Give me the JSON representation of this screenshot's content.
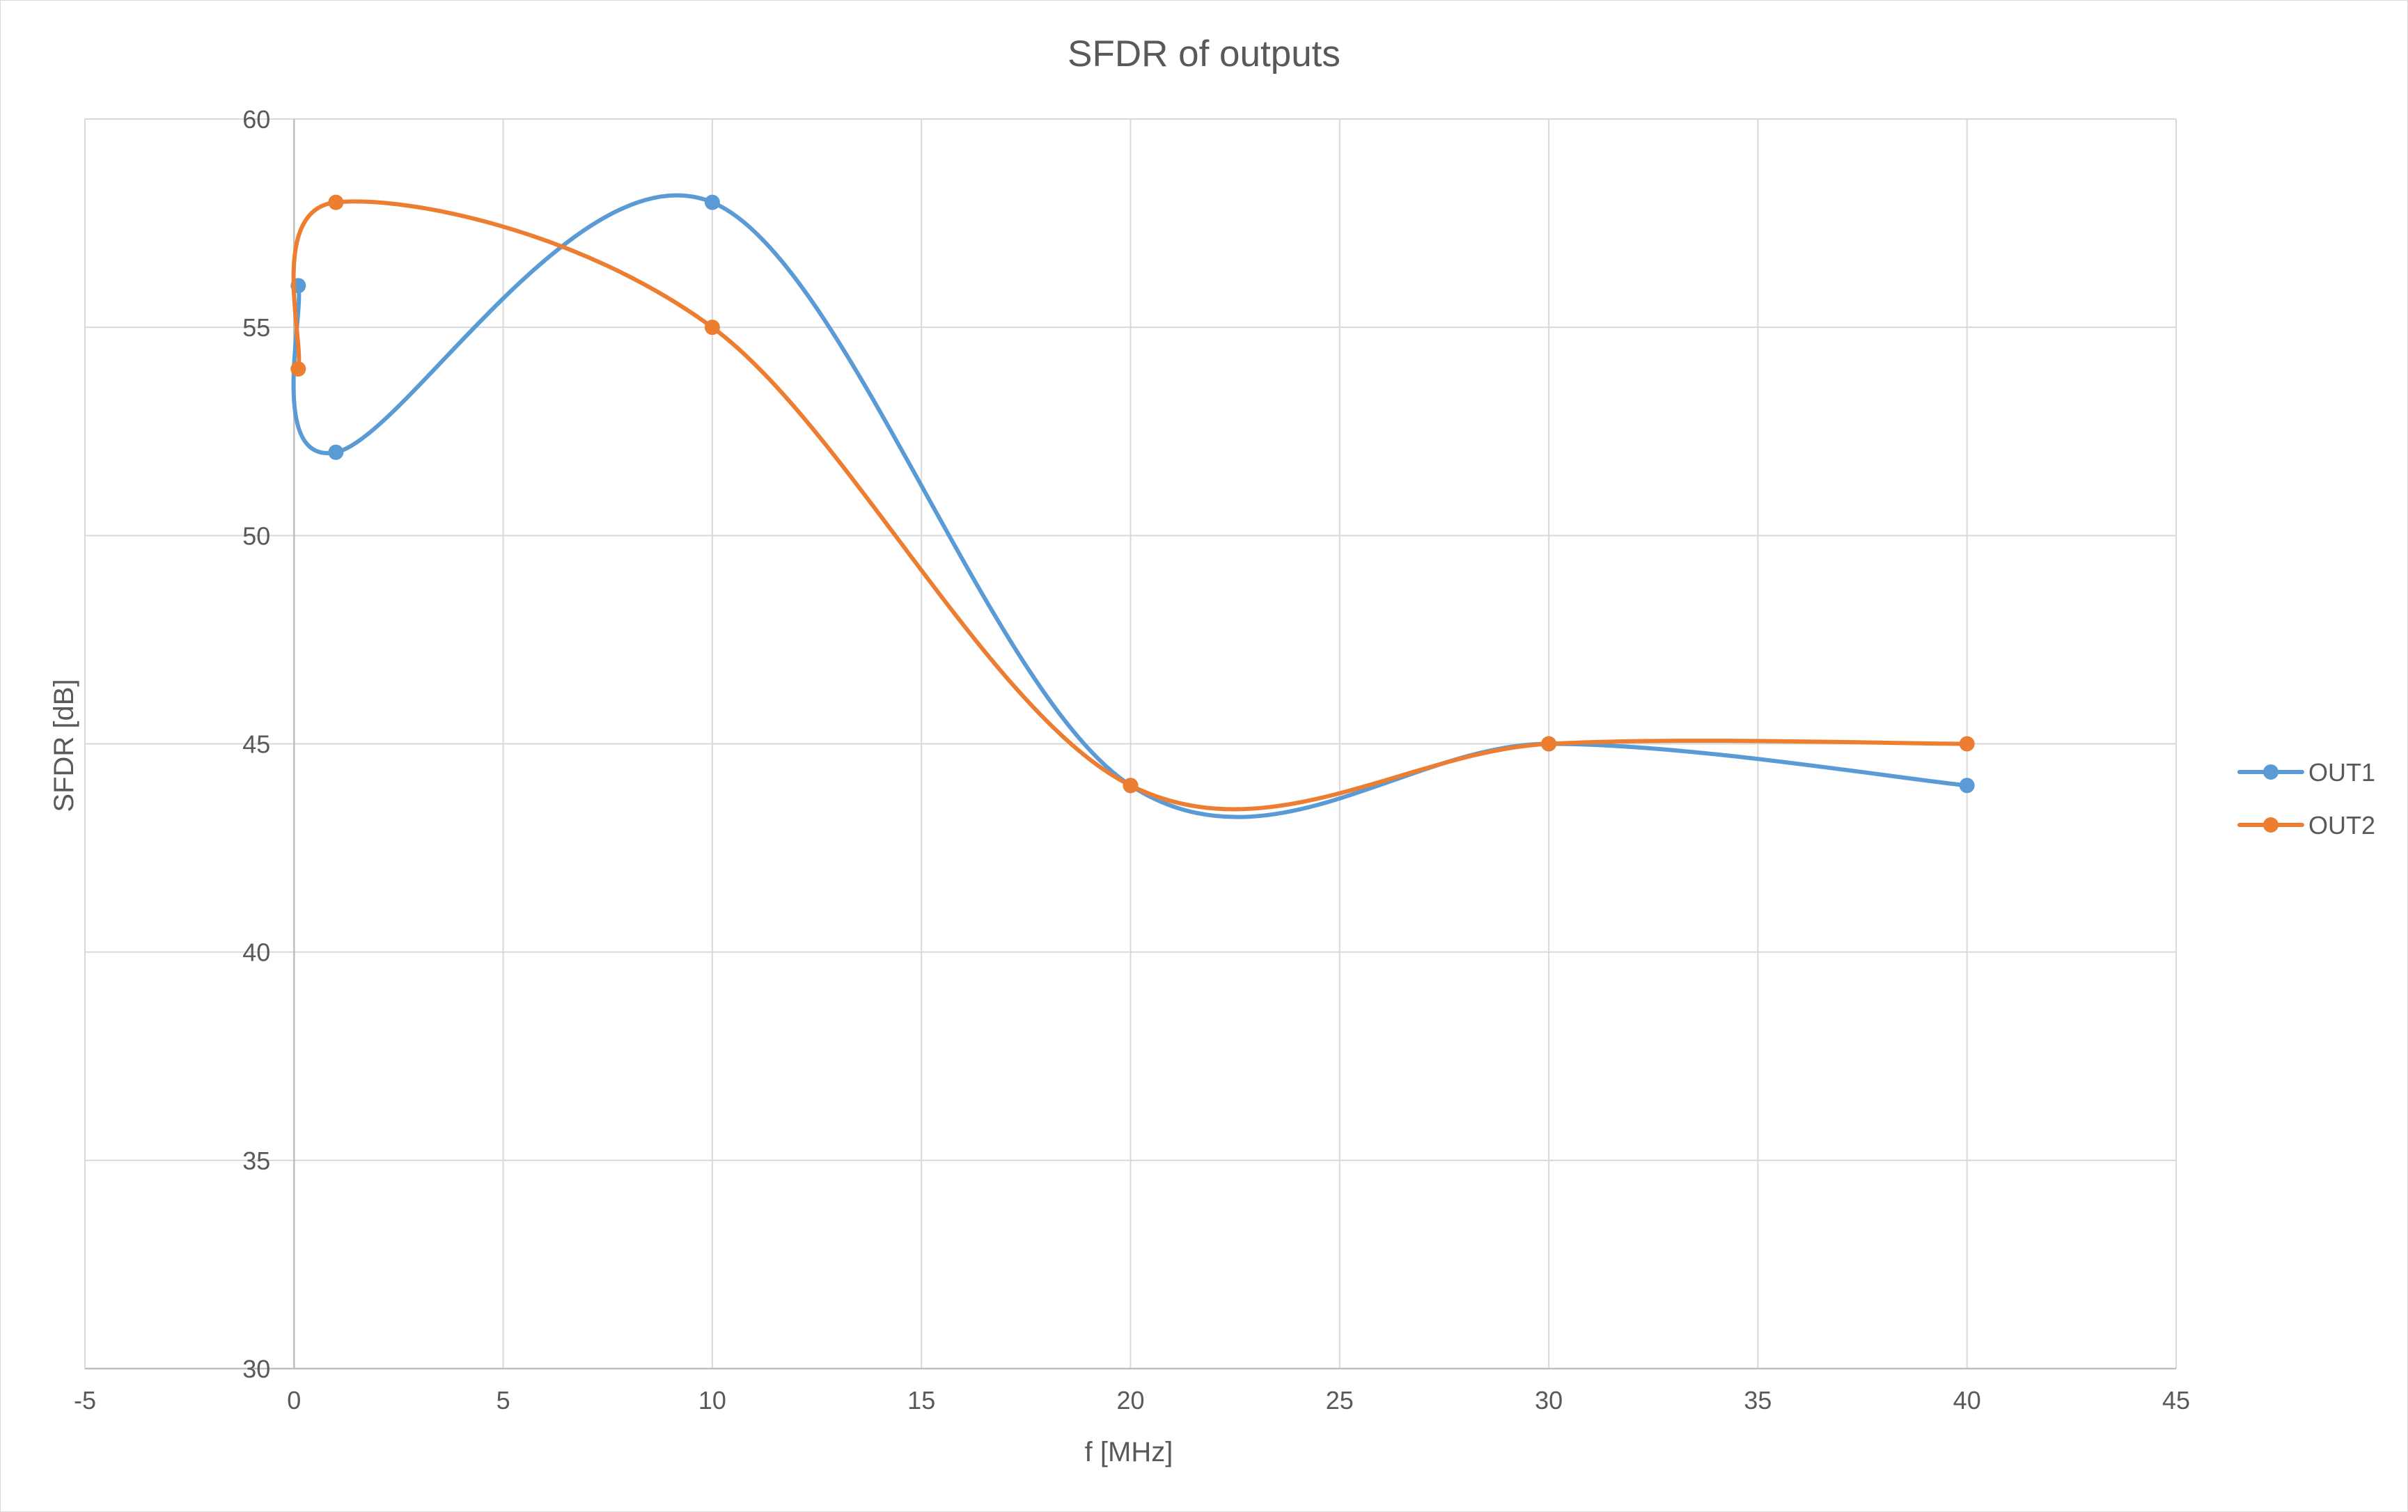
{
  "chart_data": {
    "type": "scatter",
    "title": "SFDR of outputs",
    "xlabel": "f [MHz]",
    "ylabel": "SFDR [dB]",
    "xlim": [
      -5,
      45
    ],
    "ylim": [
      30,
      60
    ],
    "x_ticks": [
      -5,
      0,
      5,
      10,
      15,
      20,
      25,
      30,
      35,
      40,
      45
    ],
    "y_ticks": [
      30,
      35,
      40,
      45,
      50,
      55,
      60
    ],
    "grid": true,
    "smoothed_lines": true,
    "markers": true,
    "legend_position": "right",
    "series": [
      {
        "name": "OUT1",
        "color": "#5B9BD5",
        "x": [
          0.1,
          1,
          10,
          20,
          30,
          40
        ],
        "y": [
          56,
          52,
          58,
          44,
          45,
          44
        ]
      },
      {
        "name": "OUT2",
        "color": "#ED7D31",
        "x": [
          0.1,
          1,
          10,
          20,
          30,
          40
        ],
        "y": [
          54,
          58,
          55,
          44,
          45,
          45
        ]
      }
    ]
  }
}
